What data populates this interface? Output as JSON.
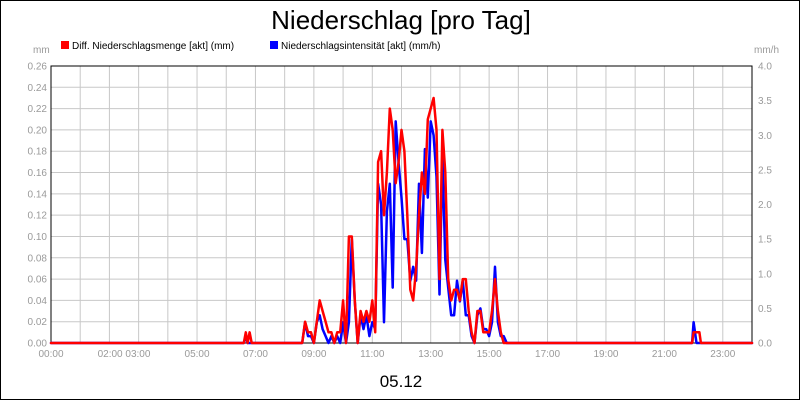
{
  "chart_data": {
    "type": "line",
    "title": "Niederschlag [pro Tag]",
    "xlabel": "05.12",
    "x_ticks": [
      "00:00",
      "02:00 03:00",
      "05:00",
      "07:00",
      "09:00",
      "11:00",
      "13:00",
      "15:00",
      "17:00",
      "19:00",
      "21:00",
      "23:00"
    ],
    "y_left": {
      "unit": "mm",
      "lim": [
        0,
        0.26
      ],
      "ticks": [
        "0.00",
        "0.02",
        "0.04",
        "0.06",
        "0.08",
        "0.10",
        "0.12",
        "0.14",
        "0.16",
        "0.18",
        "0.20",
        "0.22",
        "0.24",
        "0.26"
      ]
    },
    "y_right": {
      "unit": "mm/h",
      "lim": [
        0,
        4.0
      ],
      "ticks": [
        "0.0",
        "0.5",
        "1.0",
        "1.5",
        "2.0",
        "2.5",
        "3.0",
        "3.5",
        "4.0"
      ]
    },
    "x_range_hours": [
      0,
      24
    ],
    "grid": true,
    "legend_position": "top-left",
    "series": [
      {
        "name": "Diff. Niederschlagsmenge [akt] (mm)",
        "axis": "left",
        "color": "#ff0000",
        "x": [
          0,
          6.6,
          6.67,
          6.73,
          6.8,
          6.87,
          8.6,
          8.7,
          8.8,
          8.9,
          9.0,
          9.1,
          9.2,
          9.3,
          9.4,
          9.5,
          9.6,
          9.7,
          9.8,
          9.9,
          10.0,
          10.1,
          10.2,
          10.3,
          10.4,
          10.5,
          10.6,
          10.7,
          10.8,
          10.9,
          11.0,
          11.1,
          11.2,
          11.3,
          11.4,
          11.5,
          11.6,
          11.7,
          11.8,
          11.9,
          12.0,
          12.1,
          12.2,
          12.3,
          12.4,
          12.5,
          12.6,
          12.7,
          12.8,
          12.9,
          13.0,
          13.1,
          13.2,
          13.3,
          13.4,
          13.5,
          13.6,
          13.7,
          13.8,
          13.9,
          14.0,
          14.1,
          14.2,
          14.3,
          14.4,
          14.5,
          14.6,
          14.7,
          14.8,
          14.9,
          15.0,
          15.1,
          15.2,
          15.3,
          15.4,
          15.5,
          15.6,
          15.7,
          15.8,
          21.95,
          22.0,
          22.1,
          22.2,
          22.25,
          24
        ],
        "values": [
          0,
          0,
          0.01,
          0,
          0.01,
          0,
          0,
          0.02,
          0.01,
          0.01,
          0,
          0.02,
          0.04,
          0.03,
          0.02,
          0.01,
          0.01,
          0,
          0.01,
          0.01,
          0.04,
          0,
          0.1,
          0.1,
          0.04,
          0,
          0.03,
          0.02,
          0.03,
          0.02,
          0.04,
          0.01,
          0.17,
          0.18,
          0.12,
          0.16,
          0.22,
          0.2,
          0.15,
          0.17,
          0.2,
          0.18,
          0.12,
          0.05,
          0.04,
          0.07,
          0.12,
          0.16,
          0.14,
          0.21,
          0.22,
          0.23,
          0.2,
          0.06,
          0.2,
          0.16,
          0.06,
          0.04,
          0.05,
          0.05,
          0.04,
          0.06,
          0.06,
          0.03,
          0.01,
          0,
          0.03,
          0.03,
          0.01,
          0.01,
          0.01,
          0.03,
          0.06,
          0.03,
          0.01,
          0,
          0,
          0,
          0,
          0,
          0.01,
          0.01,
          0.01,
          0,
          0
        ]
      },
      {
        "name": "Niederschlagsintensität [akt] (mm/h)",
        "axis": "right",
        "color": "#0000ff",
        "x": [
          0,
          6.6,
          6.67,
          6.73,
          6.8,
          6.87,
          8.6,
          8.7,
          8.8,
          8.9,
          9.0,
          9.1,
          9.2,
          9.3,
          9.4,
          9.5,
          9.6,
          9.7,
          9.8,
          9.9,
          10.0,
          10.1,
          10.2,
          10.3,
          10.4,
          10.5,
          10.6,
          10.7,
          10.8,
          10.9,
          11.0,
          11.1,
          11.2,
          11.3,
          11.4,
          11.5,
          11.6,
          11.7,
          11.8,
          11.9,
          12.0,
          12.1,
          12.2,
          12.3,
          12.4,
          12.5,
          12.6,
          12.7,
          12.8,
          12.9,
          13.0,
          13.1,
          13.2,
          13.3,
          13.4,
          13.5,
          13.6,
          13.7,
          13.8,
          13.9,
          14.0,
          14.1,
          14.2,
          14.3,
          14.4,
          14.5,
          14.6,
          14.7,
          14.8,
          14.9,
          15.0,
          15.1,
          15.2,
          15.3,
          15.4,
          15.5,
          15.6,
          15.7,
          15.8,
          21.95,
          22.0,
          22.1,
          22.2,
          22.25,
          24
        ],
        "values": [
          0,
          0,
          0.1,
          0,
          0,
          0,
          0,
          0.3,
          0.1,
          0.1,
          0,
          0.3,
          0.4,
          0.2,
          0.1,
          0,
          0.1,
          0,
          0.1,
          0,
          0.3,
          0,
          0.3,
          1.5,
          0.6,
          0,
          0.4,
          0.2,
          0.4,
          0.1,
          0.3,
          0.2,
          2.3,
          2.0,
          0.3,
          1.9,
          2.3,
          0.8,
          3.2,
          2.6,
          2.1,
          1.5,
          1.5,
          0.9,
          1.1,
          0.9,
          2.3,
          1.3,
          2.8,
          2.1,
          3.2,
          3.0,
          2.4,
          0.7,
          2.7,
          1.2,
          0.8,
          0.4,
          0.4,
          0.9,
          0.6,
          0.9,
          0.4,
          0.4,
          0.1,
          0,
          0.4,
          0.5,
          0.2,
          0.2,
          0.1,
          0.3,
          1.1,
          0.3,
          0.1,
          0.1,
          0,
          0,
          0,
          0,
          0.3,
          0,
          0,
          0,
          0
        ]
      }
    ]
  }
}
